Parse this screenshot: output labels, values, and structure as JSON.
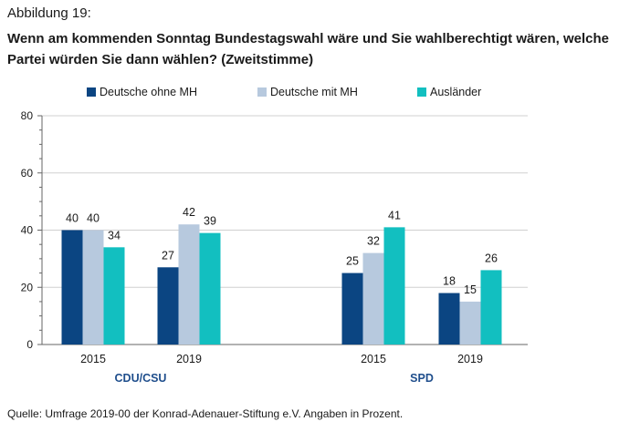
{
  "figure_label": "Abbildung 19:",
  "title": "Wenn am kommenden Sonntag Bundestagswahl wäre und Sie wahlberechtigt wären, welche Partei würden Sie dann wählen? (Zweitstimme)",
  "source": "Quelle: Umfrage 2019-00 der Konrad-Adenauer-Stiftung e.V. Angaben in Prozent.",
  "chart_data": {
    "type": "bar",
    "title": "Wenn am kommenden Sonntag Bundestagswahl wäre und Sie wahlberechtigt wären, welche Partei würden Sie dann wählen? (Zweitstimme)",
    "groups": [
      {
        "label": "CDU/CSU",
        "categories": [
          "2015",
          "2019"
        ]
      },
      {
        "label": "SPD",
        "categories": [
          "2015",
          "2019"
        ]
      }
    ],
    "categories": [
      "2015",
      "2019",
      "2015",
      "2019"
    ],
    "series": [
      {
        "name": "Deutsche ohne MH",
        "color": "#0b4582",
        "values": [
          40,
          27,
          25,
          18
        ]
      },
      {
        "name": "Deutsche mit MH",
        "color": "#b7c9de",
        "values": [
          40,
          42,
          32,
          15
        ]
      },
      {
        "name": "Ausländer",
        "color": "#12bfc0",
        "values": [
          34,
          39,
          41,
          26
        ]
      }
    ],
    "yticks": [
      0,
      20,
      40,
      60,
      80
    ],
    "ylim": [
      0,
      80
    ],
    "grid": true,
    "legend_position": "top"
  }
}
